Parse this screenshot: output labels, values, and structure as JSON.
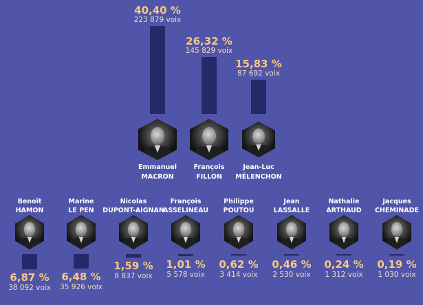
{
  "chart_data": {
    "type": "bar",
    "title": "",
    "unit_label": "voix",
    "ylabel": "%",
    "ylim": [
      0,
      40.4
    ],
    "colors": {
      "bar": "#272868",
      "background": "#5155a9",
      "percent": "#f7c980",
      "votes": "#ecdcc6"
    },
    "top_row": [
      {
        "first": "Emmanuel",
        "last": "MACRON",
        "percent": 40.4,
        "percent_label": "40,40 %",
        "votes_label": "223 879 voix"
      },
      {
        "first": "François",
        "last": "FILLON",
        "percent": 26.32,
        "percent_label": "26,32 %",
        "votes_label": "145 829 voix"
      },
      {
        "first": "Jean-Luc",
        "last": "MÉLENCHON",
        "percent": 15.83,
        "percent_label": "15,83 %",
        "votes_label": "87 692 voix"
      }
    ],
    "bottom_row": [
      {
        "first": "Benoît",
        "last": "HAMON",
        "percent": 6.87,
        "percent_label": "6,87 %",
        "votes_label": "38 092 voix"
      },
      {
        "first": "Marine",
        "last": "LE PEN",
        "percent": 6.48,
        "percent_label": "6,48 %",
        "votes_label": "35 926 voix"
      },
      {
        "first": "Nicolas",
        "last": "DUPONT-AIGNAN",
        "percent": 1.59,
        "percent_label": "1,59 %",
        "votes_label": "8 837 voix"
      },
      {
        "first": "François",
        "last": "ASSELINEAU",
        "percent": 1.01,
        "percent_label": "1,01 %",
        "votes_label": "5 578 voix"
      },
      {
        "first": "Philippe",
        "last": "POUTOU",
        "percent": 0.62,
        "percent_label": "0,62 %",
        "votes_label": "3 414 voix"
      },
      {
        "first": "Jean",
        "last": "LASSALLE",
        "percent": 0.46,
        "percent_label": "0,46 %",
        "votes_label": "2 530 voix"
      },
      {
        "first": "Nathalie",
        "last": "ARTHAUD",
        "percent": 0.24,
        "percent_label": "0,24 %",
        "votes_label": "1 312 voix"
      },
      {
        "first": "Jacques",
        "last": "CHEMINADE",
        "percent": 0.19,
        "percent_label": "0,19 %",
        "votes_label": "1 030 voix"
      }
    ]
  }
}
